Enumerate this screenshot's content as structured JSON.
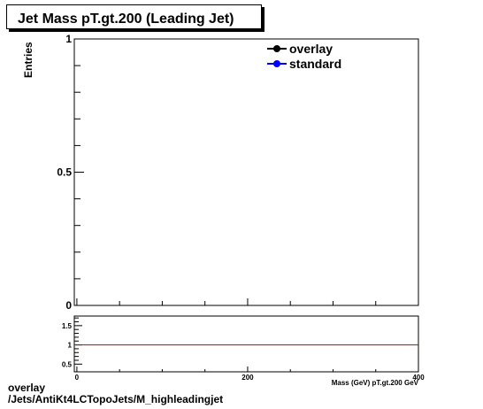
{
  "chart_data": [
    {
      "type": "line",
      "title": "Jet Mass pT.gt.200 (Leading Jet)",
      "ylabel": "Entries",
      "xlim": [
        -3,
        400
      ],
      "ylim": [
        0,
        1
      ],
      "y_ticks": [
        0,
        0.5,
        1
      ],
      "y_tick_labels": [
        "0",
        "0.5",
        "1"
      ],
      "x_ticks": [
        0,
        200,
        400
      ],
      "legend": {
        "placement": "top-right",
        "entries": [
          "overlay",
          "standard"
        ]
      },
      "series": [
        {
          "name": "overlay",
          "color": "#000000",
          "marker": "circle",
          "values": []
        },
        {
          "name": "standard",
          "color": "#0000ff",
          "marker": "circle",
          "values": []
        }
      ],
      "grid": false
    },
    {
      "type": "line",
      "xlabel": "Mass (GeV) pT.gt.200 GeV",
      "xlim": [
        -3,
        400
      ],
      "ylim": [
        0.3,
        1.75
      ],
      "y_ticks": [
        0.5,
        1,
        1.5
      ],
      "y_tick_labels": [
        "0.5",
        "1",
        "1.5"
      ],
      "x_ticks": [
        0,
        200,
        400
      ],
      "x_tick_labels": [
        "0",
        "200",
        "400"
      ],
      "reference_line": {
        "y": 1,
        "color": "#cc0000"
      },
      "grid": false
    }
  ],
  "footer": {
    "line1": "overlay",
    "line2": "/Jets/AntiKt4LCTopoJets/M_highleadingjet"
  }
}
